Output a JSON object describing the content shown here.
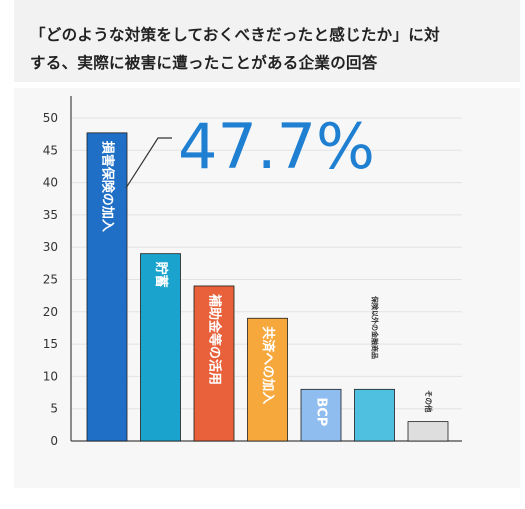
{
  "title": {
    "line1": "「どのような対策をしておくべきだったと感じたか」に対",
    "line2": "する、実際に被害に遭ったことがある企業の回答"
  },
  "chart_data": {
    "type": "bar",
    "categories": [
      "損害保険の加入",
      "貯蓄",
      "補助金等の活用",
      "共済への加入",
      "BCP",
      "保険以外の金融商品",
      "その他"
    ],
    "values": [
      47.7,
      29,
      24,
      19,
      8,
      8,
      3
    ],
    "colors": [
      "#1f6fc7",
      "#1aa3cc",
      "#e8613a",
      "#f7a83c",
      "#8fbdf0",
      "#4fc0e0",
      "#dedede"
    ],
    "ylim": [
      0,
      50
    ],
    "yticks": [
      "0",
      "5",
      "10",
      "15",
      "20",
      "25",
      "30",
      "35",
      "40",
      "45",
      "50"
    ],
    "grid": true,
    "callout": "47.7%"
  }
}
